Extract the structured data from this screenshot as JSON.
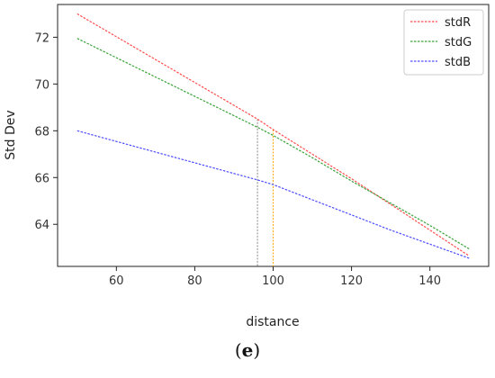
{
  "caption": "(e)",
  "chart_data": {
    "type": "line",
    "title": "",
    "xlabel": "distance",
    "ylabel": "Std Dev",
    "xlim": [
      45,
      155
    ],
    "ylim": [
      62.2,
      73.4
    ],
    "xticks": [
      60,
      80,
      100,
      120,
      140
    ],
    "yticks": [
      64,
      66,
      68,
      70,
      72
    ],
    "grid": false,
    "legend_position": "top-right",
    "series": [
      {
        "name": "stdR",
        "color": "#ff4d4d",
        "x": [
          50,
          96,
          100,
          110,
          120,
          130,
          140,
          150
        ],
        "y": [
          73.0,
          68.5,
          68.05,
          67.0,
          65.95,
          64.85,
          63.75,
          62.65
        ]
      },
      {
        "name": "stdG",
        "color": "#3aa33a",
        "x": [
          50,
          96,
          100,
          110,
          120,
          130,
          140,
          150
        ],
        "y": [
          71.95,
          68.15,
          67.8,
          66.85,
          65.85,
          64.9,
          63.95,
          62.95
        ]
      },
      {
        "name": "stdB",
        "color": "#4d4dff",
        "x": [
          50,
          96,
          100,
          110,
          120,
          130,
          140,
          150
        ],
        "y": [
          68.0,
          65.9,
          65.7,
          65.05,
          64.4,
          63.75,
          63.15,
          62.55
        ]
      }
    ],
    "vlines": [
      {
        "x": 96,
        "color": "#888888",
        "y_top": 68.5
      },
      {
        "x": 100,
        "color": "#ffaa00",
        "y_top": 68.05
      }
    ]
  }
}
